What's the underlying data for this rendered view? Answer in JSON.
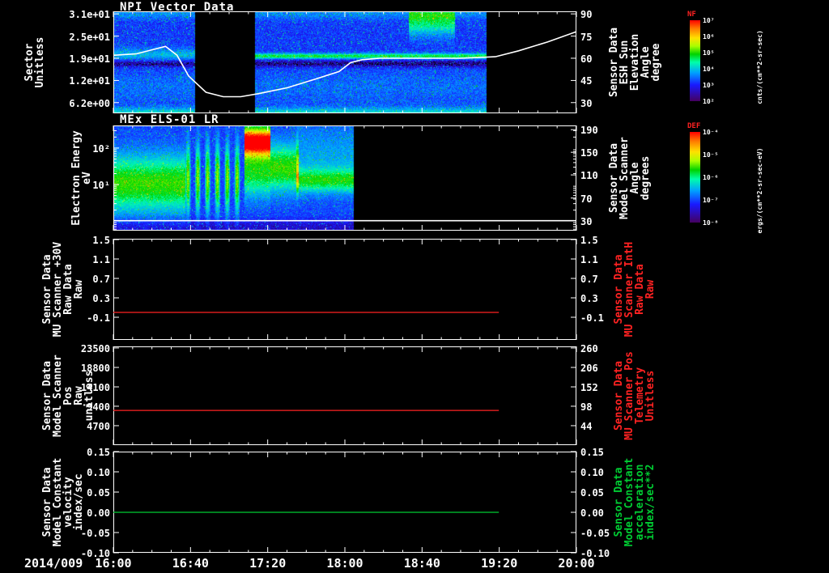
{
  "title": "NPI Vector Data",
  "panel2_title": "MEx ELS-01 LR",
  "x_axis": {
    "date_label": "2014/009"
  },
  "colors": {
    "background": "#000000",
    "frame": "#ffffff",
    "red": "#ff2222",
    "green": "#00cc33",
    "white": "#ffffff"
  },
  "chart_data": {
    "type": "heatmap",
    "x_range_hours": [
      0,
      4
    ],
    "x_tick_labels": [
      "16:00",
      "16:40",
      "17:20",
      "18:00",
      "18:40",
      "19:20",
      "20:00"
    ],
    "panels": [
      {
        "kind": "spectrogram",
        "name": "NPI Vector Data",
        "left_axis": {
          "label": "Sector\nUnitless",
          "ticks": [
            "3.1e+01",
            "2.5e+01",
            "1.9e+01",
            "1.2e+01",
            "6.2e+00"
          ]
        },
        "right_axis": {
          "label": "Sensor Data\nESH Sun Elevation\nAngle\ndegree",
          "ticks": [
            90,
            75,
            60,
            45,
            30
          ]
        },
        "colorbar": {
          "label": "NF",
          "units": "cnts/(cm**2-sr-sec)",
          "ticks": [
            "10⁷",
            "10⁶",
            "10⁵",
            "10⁴",
            "10³",
            "10²"
          ]
        },
        "overlay_line": {
          "name": "ESH Sun Elevation Angle (degrees vs right axis)",
          "color": "#ffffff",
          "points": [
            [
              0,
              62
            ],
            [
              0.2,
              63
            ],
            [
              0.35,
              66
            ],
            [
              0.45,
              68
            ],
            [
              0.55,
              62
            ],
            [
              0.65,
              48
            ],
            [
              0.8,
              37
            ],
            [
              0.95,
              34
            ],
            [
              1.1,
              34
            ],
            [
              1.25,
              36
            ],
            [
              1.5,
              40
            ],
            [
              1.75,
              46
            ],
            [
              1.95,
              51
            ],
            [
              2.05,
              57
            ],
            [
              2.15,
              59
            ],
            [
              2.3,
              60
            ],
            [
              2.6,
              60
            ],
            [
              3.0,
              60
            ],
            [
              3.3,
              61
            ],
            [
              3.5,
              65
            ],
            [
              3.75,
              71
            ],
            [
              4.0,
              78
            ]
          ]
        },
        "spectrogram": {
          "base": 0.1,
          "noise": 0.16,
          "coverage": [
            0,
            3.22
          ],
          "gap": [
            0.7,
            1.22
          ],
          "features": [
            {
              "t": [
                0,
                3.22
              ],
              "c": 0.51,
              "s": 0.035,
              "a": -0.15
            },
            {
              "t": [
                1.22,
                3.22
              ],
              "c": 0.435,
              "s": 0.025,
              "a": 0.35
            },
            {
              "t": [
                0,
                0.7
              ],
              "c": 0.42,
              "s": 0.06,
              "a": 0.15
            },
            {
              "t": [
                2.55,
                2.95
              ],
              "c": 0.08,
              "s": 0.14,
              "a": 0.33
            },
            {
              "t": [
                0,
                3.22
              ],
              "c": 1.0,
              "s": 0.06,
              "a": 0.22
            },
            {
              "t": [
                0,
                3.22
              ],
              "c": 0.74,
              "s": 0.16,
              "a": 0.06
            },
            {
              "t": [
                0,
                3.22
              ],
              "c": 0.02,
              "s": 0.05,
              "a": 0.1
            }
          ]
        }
      },
      {
        "kind": "spectrogram",
        "name": "MEx ELS-01 LR",
        "left_axis": {
          "label": "Electron Energy\neV",
          "ticks": [
            "10²",
            "10¹"
          ]
        },
        "right_axis": {
          "label": "Sensor Data\nModel Scanner\nAngle\ndegrees",
          "ticks": [
            190,
            150,
            110,
            70,
            30
          ]
        },
        "colorbar": {
          "label": "DEF",
          "units": "ergs/(cm**2-sr-sec-eV)",
          "ticks": [
            "10⁻⁴",
            "10⁻⁵",
            "10⁻⁶",
            "10⁻⁷",
            "10⁻⁸"
          ]
        },
        "overlay_line": {
          "name": "Model Scanner Angle (degrees vs right axis)",
          "color": "#ffffff",
          "points": [
            [
              0,
              30
            ],
            [
              4,
              30
            ]
          ]
        },
        "spectrogram": {
          "base": 0.13,
          "noise": 0.12,
          "coverage": [
            0,
            2.07
          ],
          "gap": null,
          "features": [
            {
              "t": [
                0,
                0.62
              ],
              "c": 0.55,
              "s": 0.26,
              "a": 0.4
            },
            {
              "t": [
                0.62,
                1.13
              ],
              "c": 0.5,
              "s": 0.3,
              "a": 0.45,
              "p": 0.085
            },
            {
              "t": [
                1.13,
                1.35
              ],
              "c": 0.15,
              "s": 0.14,
              "a": 0.9
            },
            {
              "t": [
                1.13,
                1.35
              ],
              "c": 0.45,
              "s": 0.22,
              "a": 0.35
            },
            {
              "t": [
                1.35,
                1.6
              ],
              "c": 0.4,
              "s": 0.22,
              "a": 0.4
            },
            {
              "t": [
                1.58,
                2.07
              ],
              "c": 0.52,
              "s": 0.11,
              "a": 0.3
            },
            {
              "t": [
                1.58,
                2.07
              ],
              "c": 0.3,
              "s": 0.3,
              "a": 0.12
            },
            {
              "t": [
                0,
                2.07
              ],
              "c": 0.97,
              "s": 0.08,
              "a": -0.1
            }
          ]
        }
      },
      {
        "kind": "line",
        "left_axis": {
          "label": "Sensor Data\nMU Scanner +30V\nRaw Data\nRaw",
          "ticks": [
            "1.5",
            "1.1",
            "0.7",
            "0.3",
            "-0.1"
          ]
        },
        "right_axis": {
          "label": "Sensor Data\nMU Scanner IntH\nRaw Data\nRaw",
          "ticks": [
            "1.5",
            "1.1",
            "0.7",
            "0.3",
            "-0.1"
          ]
        },
        "series": [
          {
            "name": "MU Scanner +30V Raw",
            "color": "#ff2222",
            "points": [
              [
                0,
                0.0
              ],
              [
                3.33,
                0.0
              ]
            ]
          }
        ]
      },
      {
        "kind": "line",
        "left_axis": {
          "label": "Sensor Data\nModel Scanner Pos\nRaw\nunitless",
          "ticks": [
            "23500",
            "18800",
            "14100",
            "9400",
            "4700"
          ]
        },
        "right_axis": {
          "label": "Sensor Data\nMU Scanner Pos\nTelemetry\nUnitless",
          "ticks": [
            "260",
            "206",
            "152",
            "98",
            "44"
          ]
        },
        "series": [
          {
            "name": "Model Scanner Pos Raw",
            "color": "#ff2222",
            "points": [
              [
                0,
                8400
              ],
              [
                3.33,
                8400
              ]
            ]
          }
        ]
      },
      {
        "kind": "line",
        "left_axis": {
          "label": "Sensor Data\nModel Constant\nvelocity\nindex/sec",
          "ticks": [
            "0.15",
            "0.10",
            "0.05",
            "0.00",
            "-0.05",
            "-0.10"
          ]
        },
        "right_axis": {
          "label": "Sensor Data\nModel Constant\nacceleration\nindex/sec**2",
          "ticks": [
            "0.15",
            "0.10",
            "0.05",
            "0.00",
            "-0.05",
            "-0.10"
          ]
        },
        "series": [
          {
            "name": "Model Constant velocity",
            "color": "#00cc33",
            "points": [
              [
                0,
                0.0
              ],
              [
                3.33,
                0.0
              ]
            ]
          }
        ]
      }
    ]
  }
}
